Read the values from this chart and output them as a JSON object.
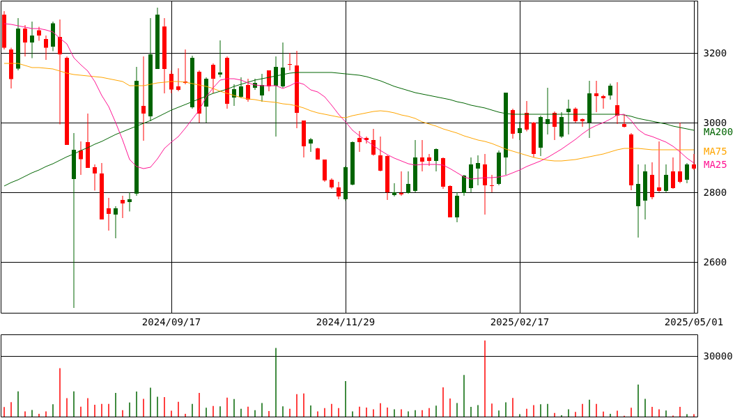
{
  "chart_data": [
    {
      "type": "candlestick",
      "categories": [
        null,
        null,
        null,
        null,
        null,
        null,
        null,
        null,
        null,
        null,
        null,
        null,
        null,
        null,
        null,
        null,
        null,
        null,
        null,
        null,
        null,
        null,
        null,
        null,
        "2024/09/17",
        null,
        null,
        null,
        null,
        null,
        null,
        null,
        null,
        null,
        null,
        null,
        null,
        null,
        null,
        null,
        null,
        null,
        null,
        null,
        null,
        null,
        null,
        null,
        null,
        "2024/11/29",
        null,
        null,
        null,
        null,
        null,
        null,
        null,
        null,
        null,
        null,
        null,
        null,
        null,
        null,
        null,
        null,
        null,
        null,
        null,
        null,
        null,
        null,
        null,
        null,
        "2025/02/17",
        null,
        null,
        null,
        null,
        null,
        null,
        null,
        null,
        null,
        null,
        null,
        null,
        null,
        null,
        null,
        null,
        null,
        null,
        null,
        null,
        null,
        null,
        null,
        null,
        "2025/05/01"
      ],
      "ohlc": [
        [
          3310,
          3320,
          3210,
          3215
        ],
        [
          3210,
          3215,
          3098,
          3125
        ],
        [
          3155,
          3300,
          3150,
          3270
        ],
        [
          3270,
          3280,
          3190,
          3230
        ],
        [
          3230,
          3290,
          3185,
          3250
        ],
        [
          3265,
          3275,
          3235,
          3250
        ],
        [
          3240,
          3250,
          3180,
          3215
        ],
        [
          3218,
          3290,
          3205,
          3285
        ],
        [
          3246,
          3296,
          2995,
          3196
        ],
        [
          3186,
          3190,
          2936,
          2936
        ],
        [
          2838,
          2970,
          2468,
          2922
        ],
        [
          2920,
          2946,
          2850,
          2895
        ],
        [
          2944,
          3026,
          2870,
          2870
        ],
        [
          2872,
          2880,
          2805,
          2854
        ],
        [
          2854,
          2884,
          2722,
          2722
        ],
        [
          2754,
          2784,
          2690,
          2738
        ],
        [
          2736,
          2760,
          2668,
          2754
        ],
        [
          2778,
          2790,
          2726,
          2768
        ],
        [
          2772,
          2800,
          2745,
          2780
        ],
        [
          2796,
          3160,
          2790,
          3120
        ],
        [
          3048,
          3190,
          2948,
          3026
        ],
        [
          3018,
          3300,
          3004,
          3196
        ],
        [
          3154,
          3330,
          3154,
          3310
        ],
        [
          3276,
          3300,
          3084,
          3154
        ],
        [
          3140,
          3150,
          3084,
          3095
        ],
        [
          3104,
          3156,
          3090,
          3094
        ],
        [
          3118,
          3210,
          3110,
          3114
        ],
        [
          3044,
          3192,
          3040,
          3186
        ],
        [
          3146,
          3150,
          3000,
          3026
        ],
        [
          3046,
          3130,
          3000,
          3126
        ],
        [
          3166,
          3170,
          3084,
          3126
        ],
        [
          3138,
          3236,
          3130,
          3144
        ],
        [
          3186,
          3190,
          3040,
          3054
        ],
        [
          3072,
          3110,
          3048,
          3096
        ],
        [
          3074,
          3130,
          3070,
          3104
        ],
        [
          3108,
          3126,
          3060,
          3066
        ],
        [
          3100,
          3126,
          3094,
          3114
        ],
        [
          3078,
          3140,
          3060,
          3108
        ],
        [
          3150,
          3150,
          3090,
          3104
        ],
        [
          3106,
          3190,
          2960,
          3160
        ],
        [
          3104,
          3230,
          3100,
          3158
        ],
        [
          3168,
          3200,
          3150,
          3166
        ],
        [
          3164,
          3206,
          2984,
          3028
        ],
        [
          3006,
          3006,
          2900,
          2932
        ],
        [
          2940,
          2956,
          2916,
          2952
        ],
        [
          2926,
          2928,
          2894,
          2894
        ],
        [
          2894,
          2894,
          2830,
          2834
        ],
        [
          2836,
          2840,
          2810,
          2814
        ],
        [
          2814,
          2830,
          2780,
          2788
        ],
        [
          2780,
          2876,
          2775,
          2872
        ],
        [
          2822,
          2946,
          2820,
          2944
        ],
        [
          2956,
          2976,
          2916,
          2944
        ],
        [
          2956,
          2960,
          2940,
          2950
        ],
        [
          2950,
          2982,
          2905,
          2908
        ],
        [
          2906,
          2960,
          2860,
          2862
        ],
        [
          2904,
          2906,
          2778,
          2800
        ],
        [
          2792,
          2826,
          2788,
          2800
        ],
        [
          2798,
          2860,
          2790,
          2794
        ],
        [
          2798,
          2860,
          2796,
          2824
        ],
        [
          2804,
          2950,
          2800,
          2900
        ],
        [
          2900,
          2950,
          2860,
          2888
        ],
        [
          2900,
          2910,
          2876,
          2890
        ],
        [
          2890,
          2926,
          2860,
          2924
        ],
        [
          2898,
          2900,
          2810,
          2816
        ],
        [
          2818,
          2820,
          2728,
          2728
        ],
        [
          2728,
          2800,
          2714,
          2790
        ],
        [
          2798,
          2850,
          2790,
          2848
        ],
        [
          2812,
          2900,
          2800,
          2880
        ],
        [
          2868,
          2906,
          2820,
          2884
        ],
        [
          2880,
          2910,
          2736,
          2820
        ],
        [
          2820,
          2850,
          2800,
          2818
        ],
        [
          2824,
          2920,
          2820,
          2914
        ],
        [
          2900,
          3086,
          2850,
          3086
        ],
        [
          3036,
          3040,
          2954,
          2968
        ],
        [
          2970,
          3002,
          2950,
          2984
        ],
        [
          3028,
          3062,
          2975,
          2980
        ],
        [
          3000,
          3002,
          2900,
          2910
        ],
        [
          2928,
          3020,
          2904,
          3016
        ],
        [
          2996,
          3100,
          2966,
          3010
        ],
        [
          3028,
          3032,
          2950,
          2988
        ],
        [
          2960,
          3030,
          2956,
          3016
        ],
        [
          3030,
          3066,
          2966,
          3040
        ],
        [
          3040,
          3044,
          3000,
          3004
        ],
        [
          3010,
          3012,
          2988,
          3004
        ],
        [
          3000,
          3120,
          2956,
          3084
        ],
        [
          3084,
          3120,
          3030,
          3076
        ],
        [
          3076,
          3080,
          3040,
          3070
        ],
        [
          3078,
          3112,
          3066,
          3106
        ],
        [
          3050,
          3116,
          2996,
          3020
        ],
        [
          2996,
          3022,
          2986,
          2988
        ],
        [
          2966,
          2970,
          2806,
          2820
        ],
        [
          2760,
          2880,
          2670,
          2824
        ],
        [
          2776,
          2880,
          2722,
          2860
        ],
        [
          2850,
          2886,
          2780,
          2786
        ],
        [
          2814,
          2946,
          2800,
          2804
        ],
        [
          2804,
          2880,
          2800,
          2850
        ],
        [
          2860,
          2900,
          2810,
          2812
        ],
        [
          2860,
          3000,
          2826,
          2830
        ],
        [
          2836,
          2884,
          2826,
          2880
        ],
        [
          2880,
          2910,
          2864,
          2868
        ]
      ],
      "colors": [
        "#ff0000",
        "#ff0000",
        "#006400",
        "#ff0000",
        "#006400",
        "#ff0000",
        "#ff0000",
        "#006400",
        "#ff0000",
        "#ff0000",
        "#006400",
        "#ff0000",
        "#ff0000",
        "#ff0000",
        "#ff0000",
        "#ff0000",
        "#006400",
        "#ff0000",
        "#006400",
        "#006400",
        "#ff0000",
        "#006400",
        "#006400",
        "#ff0000",
        "#ff0000",
        "#ff0000",
        "#ff0000",
        "#006400",
        "#ff0000",
        "#006400",
        "#ff0000",
        "#006400",
        "#ff0000",
        "#006400",
        "#006400",
        "#ff0000",
        "#006400",
        "#006400",
        "#ff0000",
        "#006400",
        "#006400",
        "#ff0000",
        "#ff0000",
        "#ff0000",
        "#006400",
        "#ff0000",
        "#ff0000",
        "#ff0000",
        "#ff0000",
        "#006400",
        "#006400",
        "#ff0000",
        "#ff0000",
        "#ff0000",
        "#ff0000",
        "#ff0000",
        "#006400",
        "#ff0000",
        "#006400",
        "#006400",
        "#ff0000",
        "#ff0000",
        "#006400",
        "#ff0000",
        "#ff0000",
        "#006400",
        "#006400",
        "#006400",
        "#006400",
        "#ff0000",
        "#ff0000",
        "#006400",
        "#006400",
        "#ff0000",
        "#006400",
        "#ff0000",
        "#ff0000",
        "#006400",
        "#006400",
        "#ff0000",
        "#006400",
        "#006400",
        "#ff0000",
        "#ff0000",
        "#006400",
        "#ff0000",
        "#ff0000",
        "#006400",
        "#ff0000",
        "#ff0000",
        "#ff0000",
        "#006400",
        "#006400",
        "#ff0000",
        "#ff0000",
        "#006400",
        "#ff0000",
        "#ff0000",
        "#006400",
        "#ff0000"
      ],
      "series": [
        {
          "type": "line",
          "name": "MA200",
          "color": "#006400",
          "values": [
            2818,
            2828,
            2836,
            2846,
            2856,
            2864,
            2874,
            2882,
            2892,
            2902,
            2910,
            2920,
            2928,
            2938,
            2946,
            2956,
            2966,
            2974,
            2982,
            2990,
            2998,
            3006,
            3016,
            3026,
            3036,
            3044,
            3052,
            3060,
            3068,
            3076,
            3084,
            3090,
            3096,
            3104,
            3110,
            3116,
            3122,
            3126,
            3130,
            3134,
            3138,
            3142,
            3144,
            3144,
            3144,
            3144,
            3144,
            3144,
            3142,
            3140,
            3138,
            3136,
            3132,
            3126,
            3120,
            3112,
            3104,
            3098,
            3092,
            3086,
            3082,
            3078,
            3074,
            3070,
            3066,
            3060,
            3056,
            3050,
            3046,
            3042,
            3036,
            3030,
            3026,
            3024,
            3024,
            3024,
            3024,
            3024,
            3024,
            3024,
            3024,
            3024,
            3024,
            3024,
            3024,
            3024,
            3024,
            3024,
            3024,
            3022,
            3018,
            3012,
            3008,
            3004,
            3000,
            2996,
            2990,
            2986,
            2982,
            2978
          ]
        },
        {
          "type": "line",
          "name": "MA75",
          "color": "#ffa500",
          "values": [
            3170,
            3170,
            3170,
            3164,
            3158,
            3158,
            3156,
            3154,
            3148,
            3142,
            3138,
            3136,
            3134,
            3132,
            3130,
            3126,
            3122,
            3118,
            3106,
            3106,
            3106,
            3110,
            3114,
            3116,
            3118,
            3118,
            3116,
            3112,
            3108,
            3104,
            3098,
            3090,
            3084,
            3078,
            3072,
            3068,
            3066,
            3062,
            3060,
            3058,
            3054,
            3052,
            3048,
            3042,
            3034,
            3028,
            3024,
            3020,
            3016,
            3014,
            3020,
            3024,
            3028,
            3032,
            3034,
            3032,
            3028,
            3022,
            3018,
            3012,
            3002,
            2996,
            2990,
            2982,
            2976,
            2970,
            2962,
            2956,
            2950,
            2946,
            2940,
            2932,
            2924,
            2918,
            2912,
            2906,
            2900,
            2896,
            2892,
            2890,
            2890,
            2892,
            2894,
            2898,
            2902,
            2906,
            2910,
            2916,
            2922,
            2926,
            2926,
            2926,
            2924,
            2922,
            2922,
            2922,
            2922,
            2922,
            2922,
            2922
          ]
        },
        {
          "type": "line",
          "name": "MA25",
          "color": "#ff1493",
          "values": [
            3284,
            3282,
            3278,
            3274,
            3270,
            3270,
            3266,
            3260,
            3242,
            3226,
            3186,
            3166,
            3148,
            3118,
            3078,
            3046,
            3000,
            2950,
            2894,
            2874,
            2868,
            2872,
            2896,
            2926,
            2944,
            2960,
            2984,
            3010,
            3036,
            3074,
            3100,
            3122,
            3126,
            3126,
            3122,
            3114,
            3108,
            3106,
            3106,
            3106,
            3098,
            3106,
            3116,
            3110,
            3094,
            3088,
            3074,
            3050,
            3024,
            3002,
            2978,
            2962,
            2948,
            2934,
            2920,
            2908,
            2898,
            2890,
            2882,
            2878,
            2880,
            2880,
            2880,
            2878,
            2868,
            2856,
            2844,
            2838,
            2840,
            2842,
            2842,
            2844,
            2848,
            2856,
            2864,
            2874,
            2882,
            2890,
            2900,
            2912,
            2924,
            2938,
            2952,
            2968,
            2982,
            2992,
            3000,
            3010,
            3022,
            3024,
            3006,
            2980,
            2966,
            2960,
            2952,
            2944,
            2932,
            2916,
            2898,
            2884
          ]
        }
      ],
      "ylim": [
        2454,
        3350
      ],
      "yticks": [
        2600,
        2800,
        3000,
        3200
      ],
      "grid": true
    },
    {
      "type": "bar",
      "categories": [
        null,
        null,
        null,
        null,
        null,
        null,
        null,
        null,
        null,
        null,
        null,
        null,
        null,
        null,
        null,
        null,
        null,
        null,
        null,
        null,
        null,
        null,
        null,
        null,
        null,
        null,
        null,
        null,
        null,
        null,
        null,
        null,
        null,
        null,
        null,
        null,
        null,
        null,
        null,
        null,
        null,
        null,
        null,
        null,
        null,
        null,
        null,
        null,
        null,
        null,
        null,
        null,
        null,
        null,
        null,
        null,
        null,
        null,
        null,
        null,
        null,
        null,
        null,
        null,
        null,
        null,
        null,
        null,
        null,
        null,
        null,
        null,
        null,
        null,
        null,
        null,
        null,
        null,
        null,
        null,
        null,
        null,
        null,
        null,
        null,
        null,
        null,
        null,
        null,
        null,
        null,
        null,
        null,
        null,
        null,
        null,
        null,
        null,
        null,
        null
      ],
      "values": [
        4700,
        7200,
        12500,
        2600,
        3300,
        1400,
        2600,
        6100,
        24000,
        9100,
        12500,
        4900,
        9100,
        5900,
        6300,
        6300,
        11700,
        3200,
        7000,
        12400,
        8800,
        14300,
        9800,
        9700,
        2900,
        7300,
        1400,
        6300,
        11700,
        4400,
        5300,
        5100,
        9400,
        8700,
        3900,
        4900,
        3200,
        6700,
        2800,
        34000,
        5100,
        3900,
        11100,
        11500,
        5500,
        2600,
        4200,
        6300,
        4200,
        17600,
        2600,
        4900,
        4500,
        3600,
        6600,
        4500,
        3600,
        3600,
        2600,
        3200,
        3200,
        4200,
        5400,
        14500,
        9000,
        6700,
        20600,
        4800,
        5700,
        37700,
        6500,
        3000,
        7100,
        9200,
        1200,
        3900,
        5700,
        6100,
        6300,
        1800,
        700,
        3600,
        2300,
        6300,
        8400,
        6300,
        2500,
        1400,
        2900,
        400,
        4400,
        15900,
        8800,
        4800,
        3600,
        3000,
        500,
        4800,
        1200,
        1200
      ],
      "colors": [
        "#ff0000",
        "#ff0000",
        "#006400",
        "#ff0000",
        "#006400",
        "#ff0000",
        "#ff0000",
        "#006400",
        "#ff0000",
        "#ff0000",
        "#006400",
        "#ff0000",
        "#ff0000",
        "#ff0000",
        "#ff0000",
        "#ff0000",
        "#006400",
        "#ff0000",
        "#006400",
        "#006400",
        "#ff0000",
        "#006400",
        "#006400",
        "#ff0000",
        "#ff0000",
        "#ff0000",
        "#ff0000",
        "#006400",
        "#ff0000",
        "#006400",
        "#ff0000",
        "#006400",
        "#ff0000",
        "#006400",
        "#006400",
        "#ff0000",
        "#006400",
        "#006400",
        "#ff0000",
        "#006400",
        "#006400",
        "#ff0000",
        "#ff0000",
        "#ff0000",
        "#006400",
        "#ff0000",
        "#ff0000",
        "#ff0000",
        "#ff0000",
        "#006400",
        "#006400",
        "#ff0000",
        "#ff0000",
        "#ff0000",
        "#ff0000",
        "#ff0000",
        "#006400",
        "#ff0000",
        "#006400",
        "#006400",
        "#ff0000",
        "#ff0000",
        "#006400",
        "#ff0000",
        "#ff0000",
        "#006400",
        "#006400",
        "#006400",
        "#006400",
        "#ff0000",
        "#ff0000",
        "#006400",
        "#006400",
        "#ff0000",
        "#006400",
        "#ff0000",
        "#ff0000",
        "#006400",
        "#006400",
        "#ff0000",
        "#006400",
        "#006400",
        "#ff0000",
        "#ff0000",
        "#006400",
        "#ff0000",
        "#ff0000",
        "#006400",
        "#ff0000",
        "#ff0000",
        "#ff0000",
        "#006400",
        "#006400",
        "#ff0000",
        "#ff0000",
        "#006400",
        "#ff0000",
        "#ff0000",
        "#006400",
        "#ff0000"
      ],
      "ylim": [
        0,
        40700
      ],
      "yticks": [
        30000
      ],
      "grid": "y",
      "tick_labels": "y"
    }
  ]
}
